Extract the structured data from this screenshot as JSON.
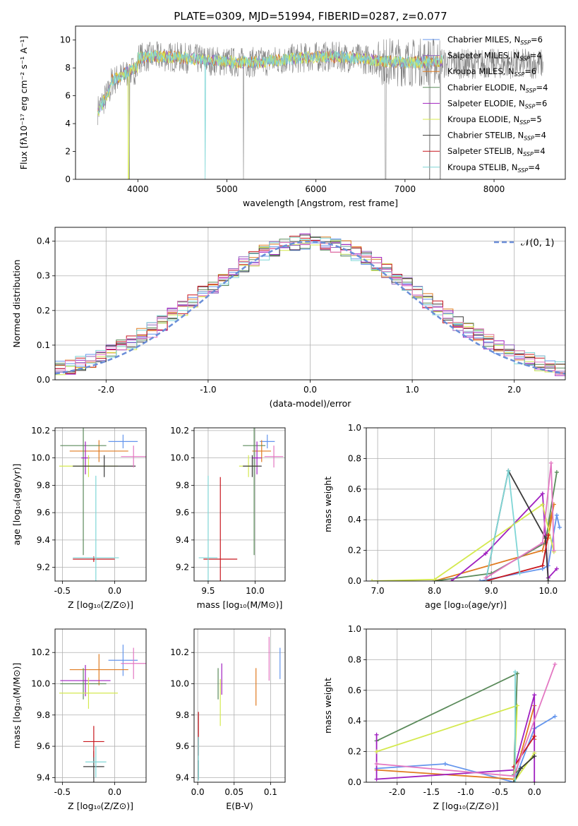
{
  "figure": {
    "title": "PLATE=0309, MJD=51994, FIBERID=0287, z=0.077"
  },
  "colors": {
    "Chabrier MILES": "#6495ed",
    "Salpeter MILES": "#9467bd",
    "Kroupa MILES": "#e07b20",
    "Chabrier ELODIE": "#5a8a5a",
    "Salpeter ELODIE": "#a020c0",
    "Kroupa ELODIE": "#d4e94f",
    "Chabrier STELIB": "#3a3a3a",
    "Salpeter STELIB": "#c8171e",
    "Kroupa STELIB": "#7fd6d6",
    "data": "#808080",
    "pink": "#e377c2",
    "normal": "#6a8ed8"
  },
  "chart_data": [
    {
      "id": "spectrum",
      "type": "line",
      "xlabel": "wavelength [Angstrom, rest frame]",
      "ylabel": "Flux [fλ10⁻¹⁷ erg cm⁻² s⁻¹ A⁻¹]",
      "xlim": [
        3300,
        8800
      ],
      "ylim": [
        0,
        11
      ],
      "xticks": [
        4000,
        5000,
        6000,
        7000,
        8000
      ],
      "yticks": [
        0,
        2,
        4,
        6,
        8,
        10
      ],
      "grid": false,
      "legend_position": "right",
      "legend": [
        {
          "label": "Chabrier MILES, N_SSP=6",
          "color": "#6495ed"
        },
        {
          "label": "Salpeter MILES, N_SSP=4",
          "color": "#9467bd"
        },
        {
          "label": "Kroupa MILES, N_SSP=6",
          "color": "#e07b20"
        },
        {
          "label": "Chabrier ELODIE, N_SSP=4",
          "color": "#5a8a5a"
        },
        {
          "label": "Salpeter ELODIE, N_SSP=6",
          "color": "#a020c0"
        },
        {
          "label": "Kroupa ELODIE, N_SSP=5",
          "color": "#d4e94f"
        },
        {
          "label": "Chabrier STELIB, N_SSP=4",
          "color": "#3a3a3a"
        },
        {
          "label": "Salpeter STELIB, N_SSP=4",
          "color": "#c8171e"
        },
        {
          "label": "Kroupa STELIB, N_SSP=4",
          "color": "#7fd6d6"
        }
      ],
      "data_range": [
        3550,
        8550
      ],
      "model_range": [
        3550,
        7420
      ],
      "model_level": 8.6
    },
    {
      "id": "residuals",
      "type": "histogram",
      "xlabel": "(data-model)/error",
      "ylabel": "Normed distribution",
      "xlim": [
        -2.5,
        2.5
      ],
      "ylim": [
        0,
        0.44
      ],
      "xticks": [
        -2,
        -1,
        0,
        1,
        2
      ],
      "yticks": [
        0.0,
        0.1,
        0.2,
        0.3,
        0.4
      ],
      "grid": true,
      "legend": [
        {
          "label": "𝒩(0, 1)",
          "color": "#6a8ed8",
          "style": "dashed"
        }
      ],
      "bin_width": 0.1
    },
    {
      "id": "age-vs-Z",
      "type": "errorbar",
      "xlabel": "Z [log₁₀(Z/Z⊙)]",
      "ylabel": "age  [log₁₀(age/yr)]",
      "xlim": [
        -0.57,
        0.3
      ],
      "ylim": [
        9.1,
        10.22
      ],
      "xticks": [
        -0.5,
        0.0
      ],
      "yticks": [
        9.2,
        9.4,
        9.6,
        9.8,
        10.0,
        10.2
      ],
      "grid": true,
      "points": [
        {
          "c": "Chabrier MILES",
          "x": 0.08,
          "y": 10.12,
          "xe": 0.14,
          "ye": 0.05
        },
        {
          "c": "Kroupa MILES",
          "x": -0.15,
          "y": 10.05,
          "xe": 0.28,
          "ye": 0.08
        },
        {
          "c": "Chabrier ELODIE",
          "x": -0.3,
          "y": 10.09,
          "xe": 0.22,
          "ye": 0.8
        },
        {
          "c": "Salpeter ELODIE",
          "x": -0.28,
          "y": 10.0,
          "xe": 0.04,
          "ye": 0.12
        },
        {
          "c": "Kroupa ELODIE",
          "x": -0.25,
          "y": 9.94,
          "xe": 0.28,
          "ye": 0.08
        },
        {
          "c": "Chabrier STELIB",
          "x": -0.1,
          "y": 9.94,
          "xe": 0.3,
          "ye": 0.08
        },
        {
          "c": "Salpeter STELIB",
          "x": -0.2,
          "y": 9.26,
          "xe": 0.2,
          "ye": 0.02
        },
        {
          "c": "Kroupa STELIB",
          "x": -0.18,
          "y": 9.27,
          "xe": 0.22,
          "ye": 0.6
        },
        {
          "c": "pink",
          "x": 0.18,
          "y": 10.01,
          "xe": 0.12,
          "ye": 0.08
        }
      ]
    },
    {
      "id": "age-vs-mass",
      "type": "errorbar",
      "xlabel": "mass [log₁₀(M/M⊙)]",
      "ylabel": "",
      "xlim": [
        9.35,
        10.32
      ],
      "ylim": [
        9.1,
        10.22
      ],
      "xticks": [
        9.5,
        10.0
      ],
      "yticks": [
        9.2,
        9.4,
        9.6,
        9.8,
        10.0,
        10.2
      ],
      "grid": true,
      "points": [
        {
          "c": "Chabrier MILES",
          "x": 10.13,
          "y": 10.12,
          "xe": 0.08,
          "ye": 0.05
        },
        {
          "c": "Kroupa MILES",
          "x": 10.07,
          "y": 10.05,
          "xe": 0.1,
          "ye": 0.08
        },
        {
          "c": "Chabrier ELODIE",
          "x": 9.99,
          "y": 10.09,
          "xe": 0.12,
          "ye": 0.8
        },
        {
          "c": "Salpeter ELODIE",
          "x": 10.02,
          "y": 10.0,
          "xe": 0.05,
          "ye": 0.12
        },
        {
          "c": "Kroupa ELODIE",
          "x": 9.93,
          "y": 9.94,
          "xe": 0.1,
          "ye": 0.08
        },
        {
          "c": "Chabrier STELIB",
          "x": 9.97,
          "y": 9.94,
          "xe": 0.1,
          "ye": 0.08
        },
        {
          "c": "Salpeter STELIB",
          "x": 9.63,
          "y": 9.26,
          "xe": 0.18,
          "ye": 0.6
        },
        {
          "c": "Kroupa STELIB",
          "x": 9.5,
          "y": 9.27,
          "xe": 0.1,
          "ye": 0.6
        },
        {
          "c": "pink",
          "x": 10.2,
          "y": 10.01,
          "xe": 0.1,
          "ye": 0.08
        }
      ]
    },
    {
      "id": "weight-vs-age",
      "type": "line",
      "xlabel": "age  [log₁₀(age/yr)]",
      "ylabel": "mass weight",
      "xlim": [
        6.8,
        10.3
      ],
      "ylim": [
        0,
        1.0
      ],
      "xticks": [
        7,
        8,
        9,
        10
      ],
      "yticks": [
        0.0,
        0.2,
        0.4,
        0.6,
        0.8,
        1.0
      ],
      "grid": true,
      "series": [
        {
          "c": "Chabrier MILES",
          "x": [
            8.8,
            9.9,
            10.0,
            10.15,
            10.2
          ],
          "y": [
            0.0,
            0.08,
            0.1,
            0.43,
            0.35
          ]
        },
        {
          "c": "Kroupa MILES",
          "x": [
            8.0,
            9.9,
            10.1,
            10.0
          ],
          "y": [
            0.0,
            0.2,
            0.5,
            0.28
          ]
        },
        {
          "c": "Chabrier ELODIE",
          "x": [
            8.0,
            9.0,
            9.95,
            10.15
          ],
          "y": [
            0.0,
            0.05,
            0.25,
            0.71
          ]
        },
        {
          "c": "Salpeter ELODIE",
          "x": [
            8.3,
            8.9,
            9.9,
            10.0,
            10.15
          ],
          "y": [
            0.0,
            0.18,
            0.57,
            0.02,
            0.08
          ]
        },
        {
          "c": "Kroupa ELODIE",
          "x": [
            6.9,
            8.0,
            9.9,
            10.1
          ],
          "y": [
            0.0,
            0.01,
            0.5,
            0.19
          ]
        },
        {
          "c": "Chabrier STELIB",
          "x": [
            8.9,
            9.3,
            9.95,
            10.0
          ],
          "y": [
            0.0,
            0.72,
            0.28,
            0.0
          ]
        },
        {
          "c": "Salpeter STELIB",
          "x": [
            8.9,
            9.9,
            10.0
          ],
          "y": [
            0.0,
            0.1,
            0.3
          ]
        },
        {
          "c": "Kroupa STELIB",
          "x": [
            8.9,
            9.3,
            9.5
          ],
          "y": [
            0.0,
            0.72,
            0.05
          ]
        },
        {
          "c": "pink",
          "x": [
            8.9,
            9.9,
            10.05,
            10.1
          ],
          "y": [
            0.02,
            0.25,
            0.77,
            0.2
          ]
        }
      ]
    },
    {
      "id": "mass-vs-Z",
      "type": "errorbar",
      "xlabel": "Z [log₁₀(Z/Z⊙)]",
      "ylabel": "mass [log₁₀(M/M⊙)]",
      "xlim": [
        -0.57,
        0.3
      ],
      "ylim": [
        9.37,
        10.35
      ],
      "xticks": [
        -0.5,
        0.0
      ],
      "yticks": [
        9.4,
        9.6,
        9.8,
        10.0,
        10.2
      ],
      "grid": true,
      "points": [
        {
          "c": "Chabrier MILES",
          "x": 0.08,
          "y": 10.15,
          "xe": 0.14,
          "ye": 0.1
        },
        {
          "c": "Kroupa MILES",
          "x": -0.15,
          "y": 10.09,
          "xe": 0.28,
          "ye": 0.1
        },
        {
          "c": "Chabrier ELODIE",
          "x": -0.3,
          "y": 10.0,
          "xe": 0.22,
          "ye": 0.1
        },
        {
          "c": "Salpeter ELODIE",
          "x": -0.28,
          "y": 10.02,
          "xe": 0.24,
          "ye": 0.1
        },
        {
          "c": "Kroupa ELODIE",
          "x": -0.25,
          "y": 9.94,
          "xe": 0.28,
          "ye": 0.1
        },
        {
          "c": "Chabrier STELIB",
          "x": -0.2,
          "y": 9.47,
          "xe": 0.1,
          "ye": 0.1
        },
        {
          "c": "Salpeter STELIB",
          "x": -0.2,
          "y": 9.63,
          "xe": 0.1,
          "ye": 0.1
        },
        {
          "c": "Kroupa STELIB",
          "x": -0.18,
          "y": 9.5,
          "xe": 0.1,
          "ye": 0.1
        },
        {
          "c": "pink",
          "x": 0.18,
          "y": 10.13,
          "xe": 0.12,
          "ye": 0.1
        }
      ]
    },
    {
      "id": "mass-vs-ebv",
      "type": "errorbar",
      "xlabel": "E(B-V)",
      "ylabel": "",
      "xlim": [
        -0.005,
        0.12
      ],
      "ylim": [
        9.37,
        10.35
      ],
      "xticks": [
        0.0,
        0.05,
        0.1
      ],
      "yticks": [
        9.4,
        9.6,
        9.8,
        10.0,
        10.2
      ],
      "grid": true,
      "points": [
        {
          "c": "Chabrier MILES",
          "x": 0.113,
          "y": 10.13,
          "xe": 0,
          "ye": 0.1
        },
        {
          "c": "Kroupa MILES",
          "x": 0.08,
          "y": 9.98,
          "xe": 0,
          "ye": 0.12
        },
        {
          "c": "Chabrier ELODIE",
          "x": 0.028,
          "y": 10.0,
          "xe": 0,
          "ye": 0.1
        },
        {
          "c": "Salpeter ELODIE",
          "x": 0.033,
          "y": 10.03,
          "xe": 0,
          "ye": 0.1
        },
        {
          "c": "Kroupa ELODIE",
          "x": 0.031,
          "y": 9.88,
          "xe": 0,
          "ye": 0.15
        },
        {
          "c": "Chabrier STELIB",
          "x": 0.001,
          "y": 9.45,
          "xe": 0,
          "ye": 0.06
        },
        {
          "c": "Salpeter STELIB",
          "x": 0.001,
          "y": 9.68,
          "xe": 0,
          "ye": 0.14
        },
        {
          "c": "Kroupa STELIB",
          "x": 0.001,
          "y": 9.52,
          "xe": 0,
          "ye": 0.14
        },
        {
          "c": "pink",
          "x": 0.098,
          "y": 10.16,
          "xe": 0,
          "ye": 0.14
        }
      ]
    },
    {
      "id": "weight-vs-Z",
      "type": "line",
      "xlabel": "Z [log₁₀(Z/Z⊙)]",
      "ylabel": "mass weight",
      "xlim": [
        -2.45,
        0.45
      ],
      "ylim": [
        0,
        1.0
      ],
      "xticks": [
        -2.0,
        -1.5,
        -1.0,
        -0.5,
        0.0
      ],
      "yticks": [
        0.0,
        0.2,
        0.4,
        0.6,
        0.8,
        1.0
      ],
      "grid": true,
      "series": [
        {
          "c": "Chabrier MILES",
          "x": [
            -2.3,
            -1.3,
            -0.3,
            0.0,
            0.3
          ],
          "y": [
            0.09,
            0.12,
            0.0,
            0.35,
            0.43
          ]
        },
        {
          "c": "Kroupa MILES",
          "x": [
            -2.3,
            -0.3,
            0.0,
            0.0
          ],
          "y": [
            0.08,
            0.02,
            0.5,
            0.28
          ]
        },
        {
          "c": "Chabrier ELODIE",
          "x": [
            -2.3,
            -0.25,
            -0.3,
            0.0
          ],
          "y": [
            0.27,
            0.71,
            0.05,
            0.17
          ]
        },
        {
          "c": "Salpeter ELODIE",
          "x": [
            -2.3,
            -2.3,
            -0.3,
            0.0,
            0.0
          ],
          "y": [
            0.31,
            0.02,
            0.08,
            0.57,
            0.0
          ]
        },
        {
          "c": "Kroupa ELODIE",
          "x": [
            -2.3,
            -0.25,
            -0.3,
            0.0
          ],
          "y": [
            0.2,
            0.5,
            0.0,
            0.19
          ]
        },
        {
          "c": "Chabrier STELIB",
          "x": [
            -0.3,
            -0.2,
            0.0
          ],
          "y": [
            0.0,
            0.09,
            0.17
          ]
        },
        {
          "c": "Salpeter STELIB",
          "x": [
            -0.3,
            0.0
          ],
          "y": [
            0.1,
            0.3
          ]
        },
        {
          "c": "Kroupa STELIB",
          "x": [
            -0.28,
            -0.28
          ],
          "y": [
            0.72,
            0.0
          ]
        },
        {
          "c": "pink",
          "x": [
            -2.3,
            -0.3,
            0.3
          ],
          "y": [
            0.12,
            0.04,
            0.77
          ]
        }
      ]
    }
  ]
}
